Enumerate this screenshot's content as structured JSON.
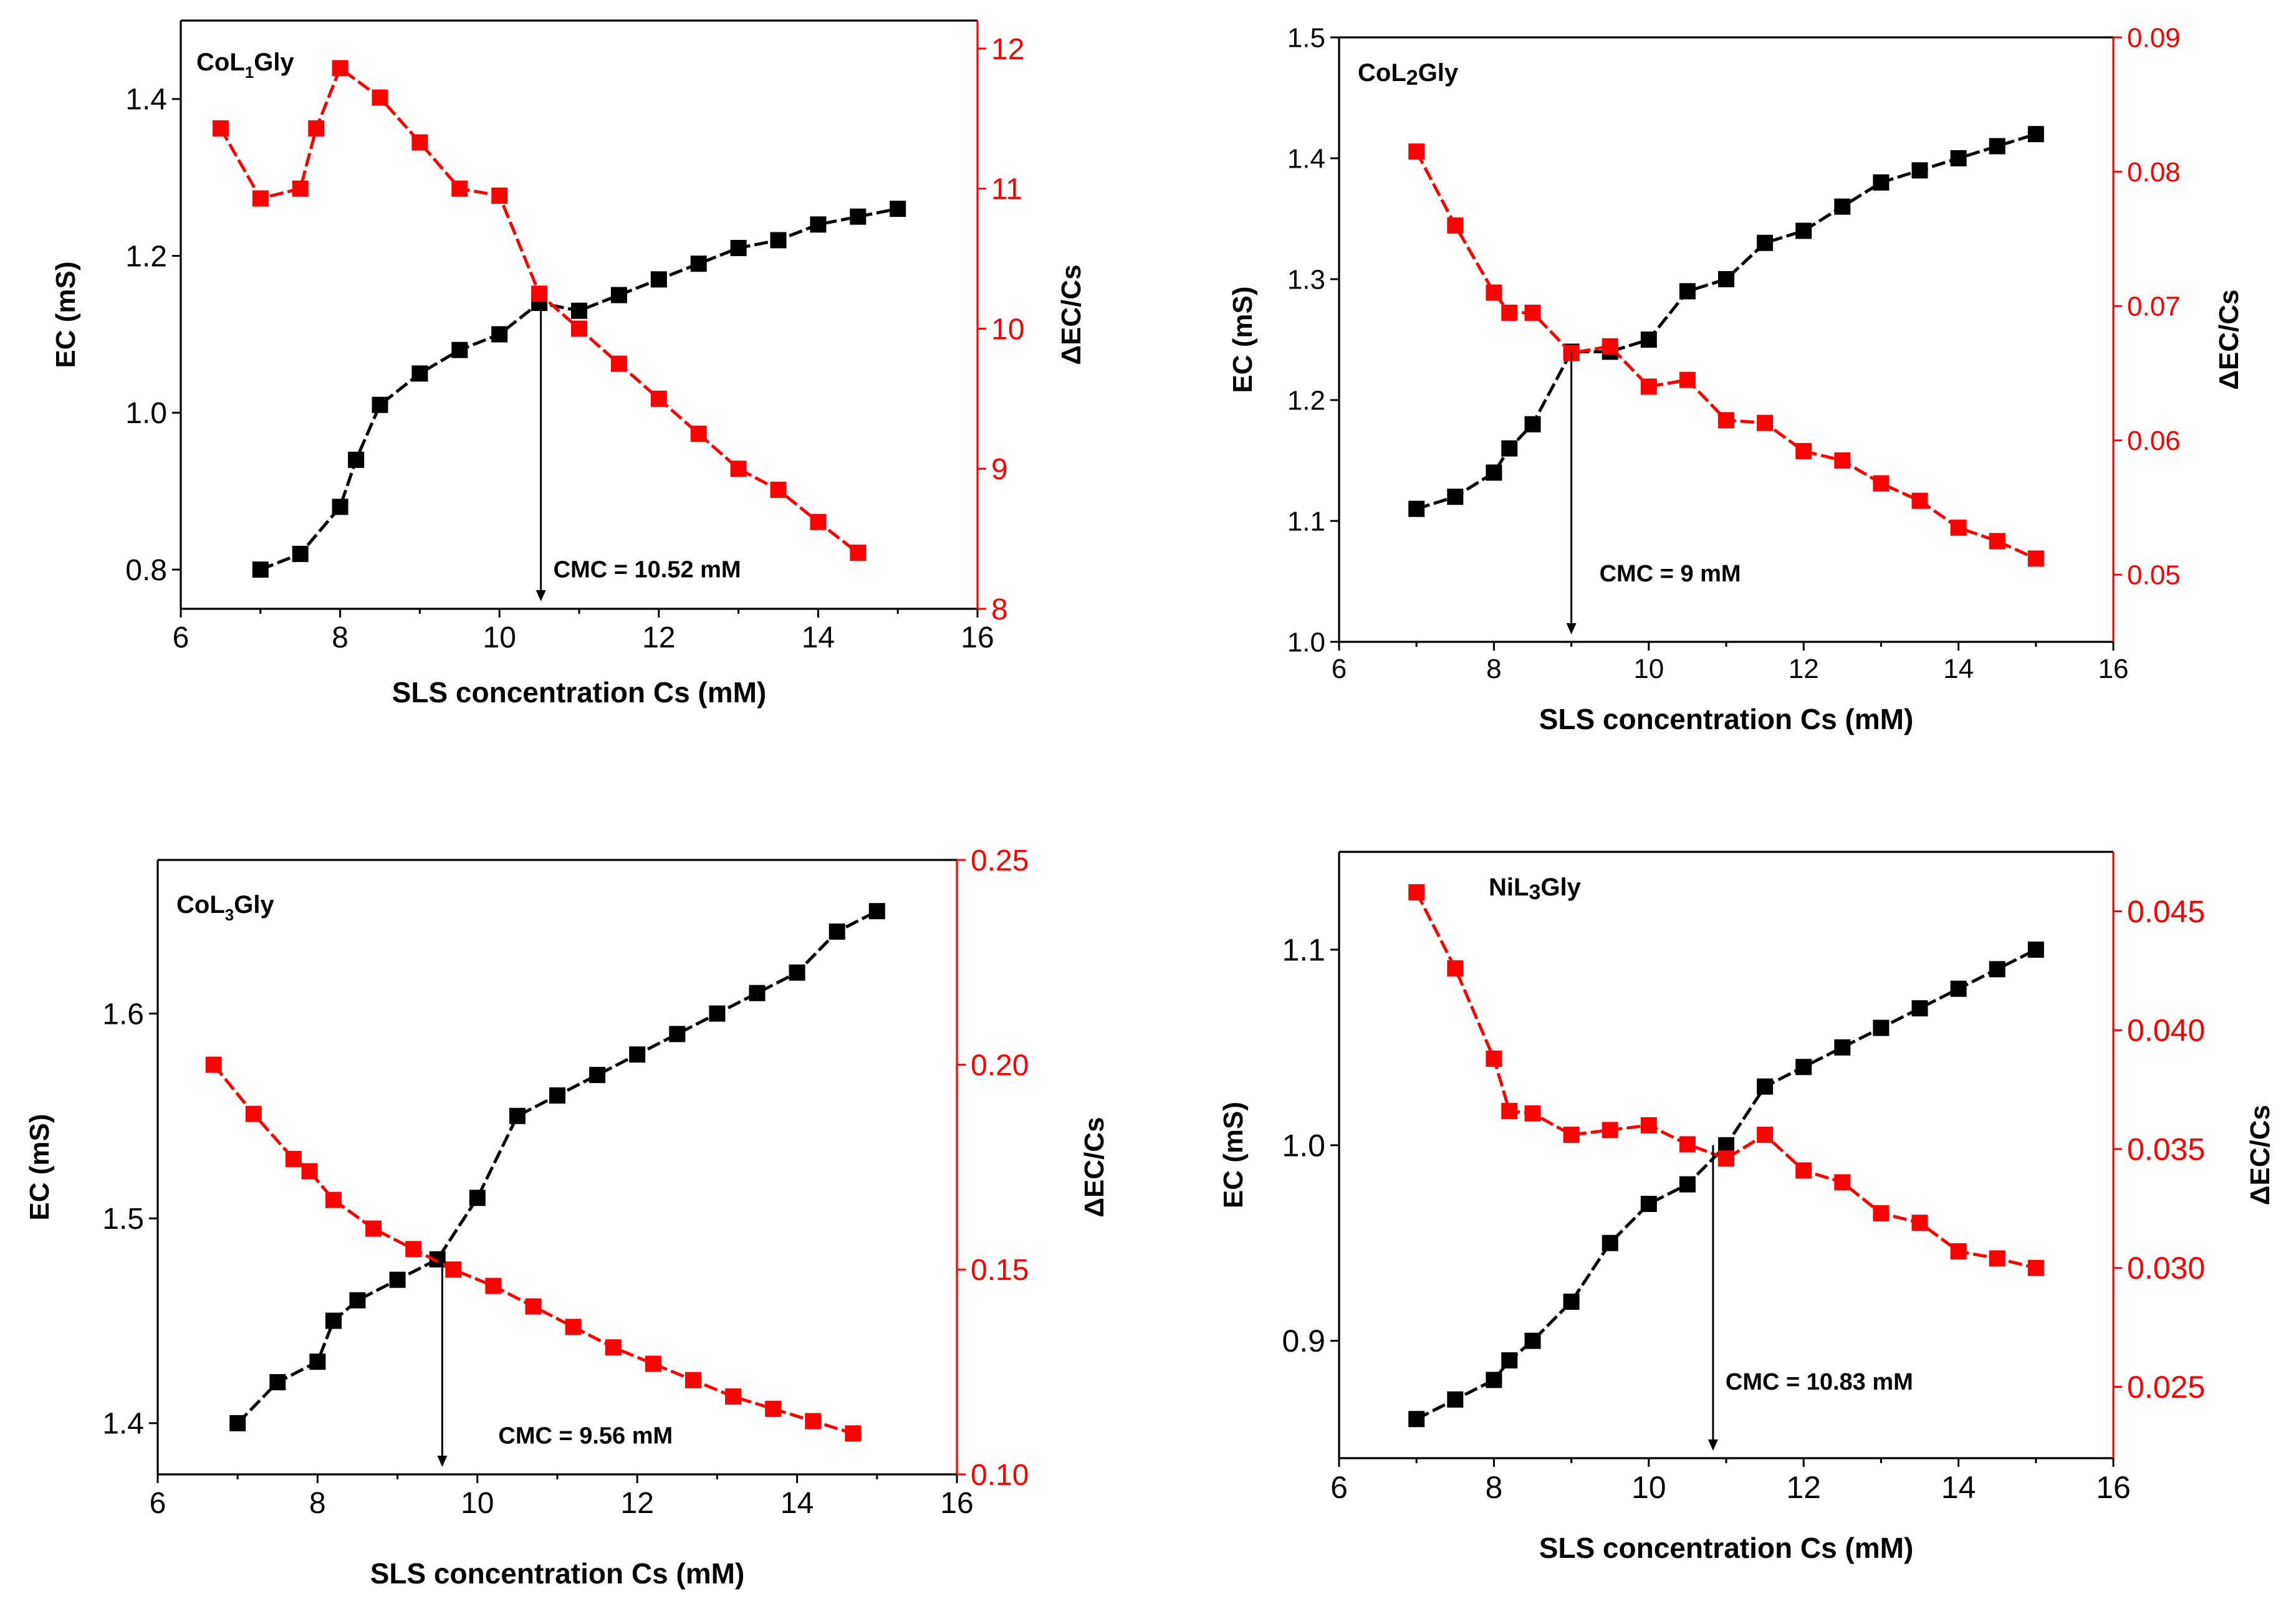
{
  "chart_data": [
    {
      "type": "line",
      "title": "CoL1Gly",
      "title_main": "CoL",
      "title_sub": "1",
      "title_rest": "Gly",
      "title_sub_style": "sub",
      "xlabel": "SLS concentration Cs (mM)",
      "ylabel": "EC (mS)",
      "y2label": "ΔEC/Cs",
      "xlim": [
        6,
        16
      ],
      "xticks": [
        6,
        8,
        10,
        12,
        14,
        16
      ],
      "xtick_labels": [
        "6",
        "8",
        "10",
        "12",
        "14",
        "16"
      ],
      "ylim": [
        0.75,
        1.5
      ],
      "yticks": [
        0.8,
        1.0,
        1.2,
        1.4
      ],
      "ytick_labels": [
        "0.8",
        "1.0",
        "1.2",
        "1.4"
      ],
      "y2lim": [
        8,
        12.2
      ],
      "y2ticks": [
        8,
        9,
        10,
        11,
        12
      ],
      "y2tick_labels": [
        "8",
        "9",
        "10",
        "11",
        "12"
      ],
      "series": [
        {
          "name": "EC",
          "axis": "left",
          "color": "#000000",
          "x": [
            7,
            7.5,
            8,
            8.2,
            8.5,
            9,
            9.5,
            10,
            10.5,
            11,
            11.5,
            12,
            12.5,
            13,
            13.5,
            14,
            14.5,
            15
          ],
          "y": [
            0.8,
            0.82,
            0.88,
            0.94,
            1.01,
            1.05,
            1.08,
            1.1,
            1.14,
            1.13,
            1.15,
            1.17,
            1.19,
            1.21,
            1.22,
            1.24,
            1.25,
            1.26
          ]
        },
        {
          "name": "ΔEC/Cs",
          "axis": "right",
          "color": "#ff0000",
          "x": [
            6.5,
            7,
            7.5,
            7.7,
            8,
            8.5,
            9,
            9.5,
            10,
            10.5,
            11,
            11.5,
            12,
            12.5,
            13,
            13.5,
            14,
            14.5
          ],
          "y": [
            11.43,
            10.93,
            11.0,
            11.43,
            11.86,
            11.65,
            11.33,
            11.0,
            10.95,
            10.25,
            10.0,
            9.75,
            9.5,
            9.25,
            9.0,
            8.85,
            8.62,
            8.4
          ]
        }
      ],
      "annotation": {
        "text": "CMC = 10.52 mM",
        "x": 10.52
      }
    },
    {
      "type": "line",
      "title": "CoL2Gly",
      "title_main": "CoL",
      "title_sub": "2",
      "title_rest": "Gly",
      "title_sub_style": "mid",
      "xlabel": "SLS concentration Cs (mM)",
      "ylabel": "EC (mS)",
      "y2label": "ΔEC/Cs",
      "xlim": [
        6,
        16
      ],
      "xticks": [
        6,
        8,
        10,
        12,
        14,
        16
      ],
      "xtick_labels": [
        "6",
        "8",
        "10",
        "12",
        "14",
        "16"
      ],
      "ylim": [
        1.0,
        1.5
      ],
      "yticks": [
        1.0,
        1.1,
        1.2,
        1.3,
        1.4,
        1.5
      ],
      "ytick_labels": [
        "1.0",
        "1.1",
        "1.2",
        "1.3",
        "1.4",
        "1.5"
      ],
      "y2lim": [
        0.045,
        0.09
      ],
      "y2ticks": [
        0.05,
        0.06,
        0.07,
        0.08,
        0.09
      ],
      "y2tick_labels": [
        "0.05",
        "0.06",
        "0.07",
        "0.08",
        "0.09"
      ],
      "series": [
        {
          "name": "EC",
          "axis": "left",
          "color": "#000000",
          "x": [
            7,
            7.5,
            8,
            8.2,
            8.5,
            9,
            9.5,
            10,
            10.5,
            11,
            11.5,
            12,
            12.5,
            13,
            13.5,
            14,
            14.5,
            15
          ],
          "y": [
            1.11,
            1.12,
            1.14,
            1.16,
            1.18,
            1.24,
            1.24,
            1.25,
            1.29,
            1.3,
            1.33,
            1.34,
            1.36,
            1.38,
            1.39,
            1.4,
            1.41,
            1.42
          ]
        },
        {
          "name": "ΔEC/Cs",
          "axis": "right",
          "color": "#ff0000",
          "x": [
            7,
            7.5,
            8,
            8.2,
            8.5,
            9,
            9.5,
            10,
            10.5,
            11,
            11.5,
            12,
            12.5,
            13,
            13.5,
            14,
            14.5,
            15
          ],
          "y": [
            0.0815,
            0.076,
            0.071,
            0.0695,
            0.0695,
            0.0665,
            0.067,
            0.064,
            0.0645,
            0.0615,
            0.0613,
            0.0592,
            0.0585,
            0.0568,
            0.0555,
            0.0535,
            0.0525,
            0.0512
          ]
        }
      ],
      "annotation": {
        "text": "CMC = 9 mM",
        "x": 9
      }
    },
    {
      "type": "line",
      "title": "CoL3Gly",
      "title_main": "CoL",
      "title_sub": "3",
      "title_rest": "Gly",
      "title_sub_style": "sub",
      "xlabel": "SLS concentration Cs (mM)",
      "ylabel": "EC (mS)",
      "y2label": "ΔEC/Cs",
      "xlim": [
        6,
        16
      ],
      "xticks": [
        6,
        8,
        10,
        12,
        14,
        16
      ],
      "xtick_labels": [
        "6",
        "8",
        "10",
        "12",
        "14",
        "16"
      ],
      "ylim": [
        1.375,
        1.675
      ],
      "yticks": [
        1.4,
        1.5,
        1.6
      ],
      "ytick_labels": [
        "1.4",
        "1.5",
        "1.6"
      ],
      "y2lim": [
        0.1,
        0.25
      ],
      "y2ticks": [
        0.1,
        0.15,
        0.2,
        0.25
      ],
      "y2tick_labels": [
        "0.10",
        "0.15",
        "0.20",
        "0.25"
      ],
      "series": [
        {
          "name": "EC",
          "axis": "left",
          "color": "#000000",
          "x": [
            7,
            7.5,
            8,
            8.2,
            8.5,
            9,
            9.5,
            10,
            10.5,
            11,
            11.5,
            12,
            12.5,
            13,
            13.5,
            14,
            14.5,
            15
          ],
          "y": [
            1.4,
            1.42,
            1.43,
            1.45,
            1.46,
            1.47,
            1.48,
            1.51,
            1.55,
            1.56,
            1.57,
            1.58,
            1.59,
            1.6,
            1.61,
            1.62,
            1.64,
            1.65
          ]
        },
        {
          "name": "ΔEC/Cs",
          "axis": "right",
          "color": "#ff0000",
          "x": [
            6.7,
            7.2,
            7.7,
            7.9,
            8.2,
            8.7,
            9.2,
            9.7,
            10.2,
            10.7,
            11.2,
            11.7,
            12.2,
            12.7,
            13.2,
            13.7,
            14.2,
            14.7
          ],
          "y": [
            0.2,
            0.188,
            0.177,
            0.174,
            0.167,
            0.16,
            0.155,
            0.15,
            0.146,
            0.141,
            0.136,
            0.131,
            0.127,
            0.123,
            0.119,
            0.116,
            0.113,
            0.11
          ]
        }
      ],
      "annotation": {
        "text": "CMC = 9.56 mM",
        "x": 9.56
      }
    },
    {
      "type": "line",
      "title": "NiL3Gly",
      "title_main": "NiL",
      "title_sub": "3",
      "title_rest": "Gly",
      "title_sub_style": "mid",
      "xlabel": "SLS concentration Cs (mM)",
      "ylabel": "EC (mS)",
      "y2label": "ΔEC/Cs",
      "xlim": [
        6,
        16
      ],
      "xticks": [
        6,
        8,
        10,
        12,
        14,
        16
      ],
      "xtick_labels": [
        "6",
        "8",
        "10",
        "12",
        "14",
        "16"
      ],
      "ylim": [
        0.84,
        1.15
      ],
      "yticks": [
        0.9,
        1.0,
        1.1
      ],
      "ytick_labels": [
        "0.9",
        "1.0",
        "1.1"
      ],
      "y2lim": [
        0.022,
        0.0475
      ],
      "y2ticks": [
        0.025,
        0.03,
        0.035,
        0.04,
        0.045
      ],
      "y2tick_labels": [
        "0.025",
        "0.030",
        "0.035",
        "0.040",
        "0.045"
      ],
      "series": [
        {
          "name": "EC",
          "axis": "left",
          "color": "#000000",
          "x": [
            7,
            7.5,
            8,
            8.2,
            8.5,
            9,
            9.5,
            10,
            10.5,
            11,
            11.5,
            12,
            12.5,
            13,
            13.5,
            14,
            14.5,
            15
          ],
          "y": [
            0.86,
            0.87,
            0.88,
            0.89,
            0.9,
            0.92,
            0.95,
            0.97,
            0.98,
            1.0,
            1.03,
            1.04,
            1.05,
            1.06,
            1.07,
            1.08,
            1.09,
            1.1
          ]
        },
        {
          "name": "ΔEC/Cs",
          "axis": "right",
          "color": "#ff0000",
          "x": [
            7,
            7.5,
            8,
            8.2,
            8.5,
            9,
            9.5,
            10,
            10.5,
            11,
            11.5,
            12,
            12.5,
            13,
            13.5,
            14,
            14.5,
            15
          ],
          "y": [
            0.0458,
            0.0426,
            0.0388,
            0.0366,
            0.0365,
            0.0356,
            0.0358,
            0.036,
            0.0352,
            0.0346,
            0.0356,
            0.0341,
            0.0336,
            0.0323,
            0.0319,
            0.0307,
            0.0304,
            0.03
          ]
        }
      ],
      "annotation": {
        "text": "CMC = 10.83 mM",
        "x": 10.83
      }
    }
  ]
}
